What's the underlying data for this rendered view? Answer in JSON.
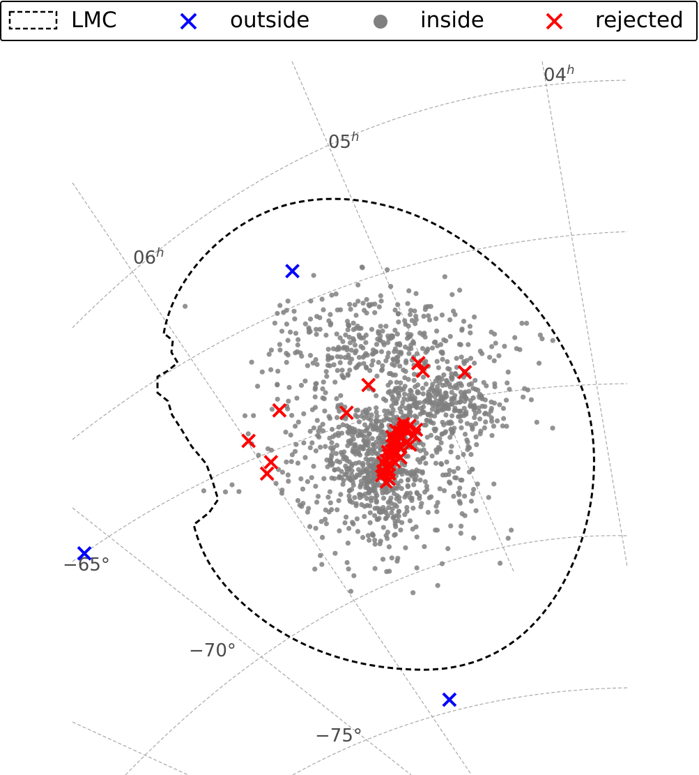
{
  "chart_data": {
    "type": "scatter",
    "projection": "sky (RA/Dec gnomonic)",
    "legend": {
      "placement": "top",
      "entries": [
        {
          "label": "LMC",
          "marker": "dashed-rectangle",
          "color": "#000000"
        },
        {
          "label": "outside",
          "marker": "x",
          "color": "#0000ff"
        },
        {
          "label": "inside",
          "marker": "dot",
          "color": "#808080"
        },
        {
          "label": "rejected",
          "marker": "x",
          "color": "#ff0000"
        }
      ]
    },
    "ra_labels": [
      "04",
      "05",
      "06"
    ],
    "ra_label_suffix": "h",
    "dec_labels": [
      "−65°",
      "−70°",
      "−75°"
    ],
    "grid": true,
    "lmc_boundary": {
      "label": "LMC",
      "style": "dashed"
    },
    "series": [
      {
        "name": "outside",
        "marker": "x",
        "color": "#0000ff",
        "points": [
          {
            "ra": 5.43,
            "dec": -60.6
          },
          {
            "ra": 6.28,
            "dec": -66.0
          },
          {
            "ra": 5.18,
            "dec": -76.2
          }
        ]
      },
      {
        "name": "rejected",
        "marker": "x",
        "color": "#ff0000",
        "points": [
          {
            "ra": 5.56,
            "dec": -64.8
          },
          {
            "ra": 5.25,
            "dec": -65.2
          },
          {
            "ra": 5.07,
            "dec": -65.1
          },
          {
            "ra": 5.06,
            "dec": -65.4
          },
          {
            "ra": 4.92,
            "dec": -65.9
          },
          {
            "ra": 5.34,
            "dec": -65.8
          },
          {
            "ra": 5.68,
            "dec": -65.3
          },
          {
            "ra": 5.62,
            "dec": -66.3
          },
          {
            "ra": 5.64,
            "dec": -66.6
          },
          {
            "ra": 5.14,
            "dec": -67.0
          },
          {
            "ra": 5.12,
            "dec": -67.2
          },
          {
            "ra": 5.16,
            "dec": -67.5
          },
          {
            "ra": 5.19,
            "dec": -67.9
          },
          {
            "ra": 5.15,
            "dec": -67.6
          },
          {
            "ra": 5.13,
            "dec": -67.35
          }
        ]
      },
      {
        "name": "inside",
        "marker": "dot",
        "color": "#808080",
        "distribution": {
          "count": 1500,
          "center": {
            "ra": 5.22,
            "dec": -67.6
          },
          "bar_major_axis_deg": 1.4,
          "ra_range": [
            4.6,
            5.9
          ],
          "dec_range": [
            -70.5,
            -63.5
          ]
        }
      }
    ]
  }
}
